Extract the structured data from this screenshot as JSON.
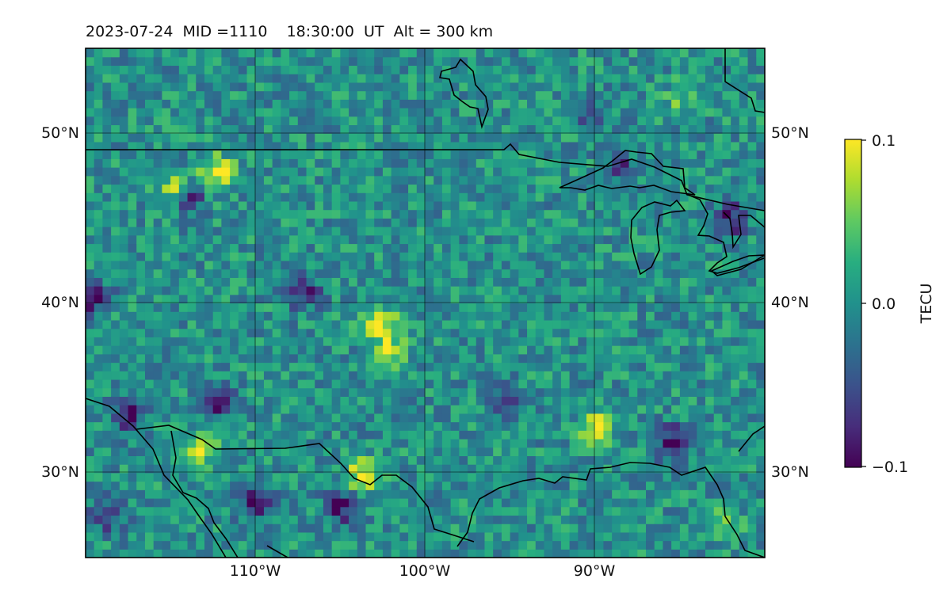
{
  "title": "2023-07-24  MID =1110    18:30:00  UT  Alt = 300 km",
  "colorbar": {
    "label": "TECU",
    "ticks": [
      "0.1",
      "0.0",
      "−0.1"
    ],
    "colors": [
      "#440154",
      "#472d7b",
      "#3b528b",
      "#2c728e",
      "#21918c",
      "#28ae80",
      "#5ec962",
      "#addc30",
      "#fde725"
    ]
  },
  "axes": {
    "lat_ticks": [
      "50°N",
      "40°N",
      "30°N"
    ],
    "lon_ticks": [
      "110°W",
      "100°W",
      "90°W"
    ]
  },
  "chart_data": {
    "type": "heatmap",
    "quantity": "TECU",
    "lon_range": [
      -120,
      -80
    ],
    "lat_range": [
      25,
      55
    ],
    "value_range": [
      -0.1,
      0.1
    ],
    "background_value": 0.0,
    "hotspots": [
      {
        "lon": -114.6,
        "lat": 46.6,
        "value": 0.1
      },
      {
        "lon": -112.2,
        "lat": 47.7,
        "value": 0.1
      },
      {
        "lon": -102.6,
        "lat": 38.8,
        "value": 0.1
      },
      {
        "lon": -113.0,
        "lat": 31.6,
        "value": 0.1
      },
      {
        "lon": -103.6,
        "lat": 29.9,
        "value": 0.1
      },
      {
        "lon": -89.9,
        "lat": 32.8,
        "value": 0.1
      },
      {
        "lon": -102.0,
        "lat": 37.0,
        "value": 0.08
      },
      {
        "lon": -117.5,
        "lat": 33.6,
        "value": -0.1
      },
      {
        "lon": -112.3,
        "lat": 34.3,
        "value": -0.09
      },
      {
        "lon": -110.0,
        "lat": 28.3,
        "value": -0.1
      },
      {
        "lon": -105.0,
        "lat": 28.0,
        "value": -0.09
      },
      {
        "lon": -119.6,
        "lat": 40.4,
        "value": -0.1
      },
      {
        "lon": -114.0,
        "lat": 46.2,
        "value": -0.1
      },
      {
        "lon": -118.8,
        "lat": 27.5,
        "value": -0.08
      },
      {
        "lon": -85.4,
        "lat": 31.8,
        "value": -0.1
      },
      {
        "lon": -82.0,
        "lat": 45.0,
        "value": -0.09
      },
      {
        "lon": -107.2,
        "lat": 40.7,
        "value": -0.08
      },
      {
        "lon": -95.0,
        "lat": 34.0,
        "value": -0.07
      },
      {
        "lon": -82.5,
        "lat": 27.0,
        "value": 0.07
      },
      {
        "lon": -88.5,
        "lat": 48.0,
        "value": -0.07
      },
      {
        "lon": -90.0,
        "lat": 51.0,
        "value": -0.05
      },
      {
        "lon": -85.0,
        "lat": 52.0,
        "value": 0.04
      }
    ]
  }
}
